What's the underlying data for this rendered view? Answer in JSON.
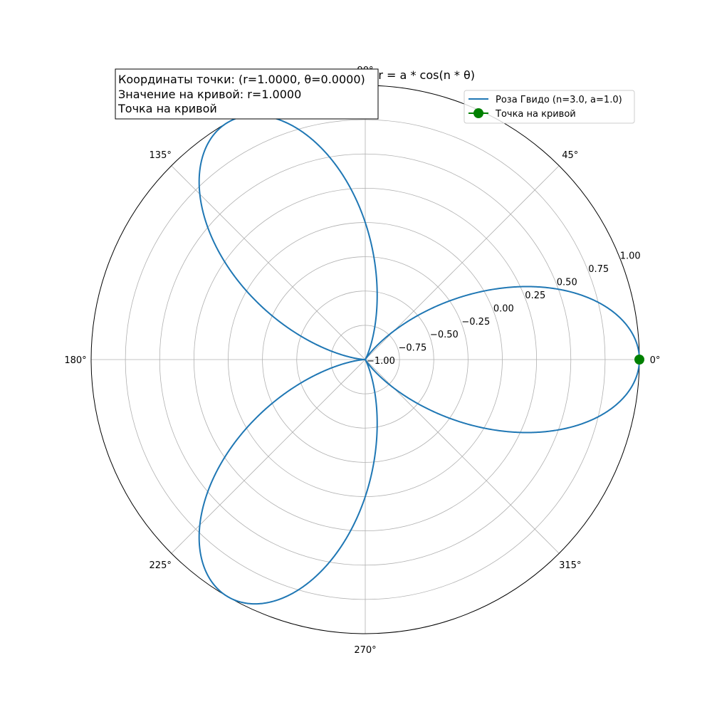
{
  "chart_data": {
    "type": "line",
    "projection": "polar",
    "title": "Кривая Розы Гвидо: r = a * cos(n * θ)",
    "function": {
      "a": 1.0,
      "n": 3.0
    },
    "theta_range_deg": [
      0,
      360
    ],
    "rlim": [
      -1.0,
      1.0
    ],
    "r_ticks": [
      -1.0,
      -0.75,
      -0.5,
      -0.25,
      0.0,
      0.25,
      0.5,
      0.75,
      1.0
    ],
    "r_tick_labels": [
      "−1.00",
      "−0.75",
      "−0.50",
      "−0.25",
      "0.00",
      "0.25",
      "0.50",
      "0.75",
      "1.00"
    ],
    "r_label_angle_deg": 22.5,
    "theta_ticks_deg": [
      0,
      45,
      90,
      135,
      180,
      225,
      270,
      315
    ],
    "theta_tick_labels": [
      "0°",
      "45°",
      "90°",
      "135°",
      "180°",
      "225°",
      "270°",
      "315°"
    ],
    "grid": true,
    "legend_position": "top-right",
    "series": [
      {
        "name": "Роза Гвидо (n=3.0, a=1.0)",
        "color": "#1f77b4",
        "kind": "line"
      },
      {
        "name": "Точка на кривой",
        "color": "#008000",
        "kind": "marker",
        "points": [
          {
            "theta_deg": 0,
            "r": 1.0
          }
        ]
      }
    ],
    "info_box": {
      "lines": [
        "Координаты точки: (r=1.0000, θ=0.0000)",
        "Значение на кривой: r=1.0000",
        "Точка на кривой"
      ]
    }
  }
}
